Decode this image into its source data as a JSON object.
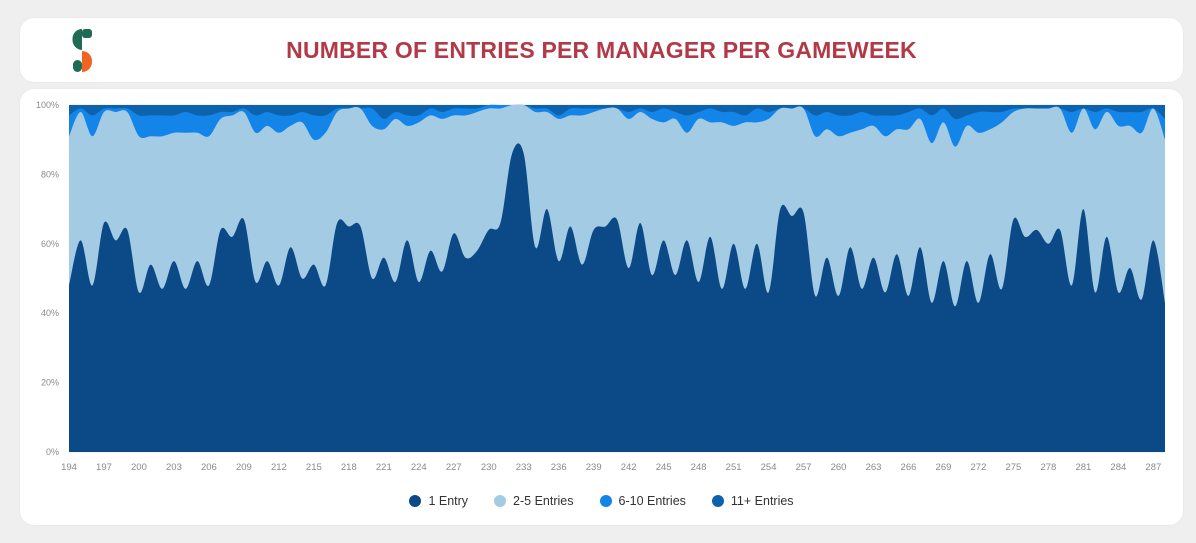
{
  "header": {
    "title": "NUMBER OF ENTRIES PER MANAGER PER GAMEWEEK",
    "logo_icon": "brand-s-logo-icon",
    "title_color": "#b23a48"
  },
  "chart_data": {
    "type": "area",
    "stacked": true,
    "normalized_percent": true,
    "xlabel": "",
    "ylabel": "",
    "ylim": [
      0,
      100
    ],
    "y_ticks": [
      "0%",
      "20%",
      "40%",
      "60%",
      "80%",
      "100%"
    ],
    "x_tick_labels": [
      "194",
      "197",
      "200",
      "203",
      "206",
      "209",
      "212",
      "215",
      "218",
      "221",
      "224",
      "227",
      "230",
      "233",
      "236",
      "239",
      "242",
      "245",
      "248",
      "251",
      "254",
      "257",
      "260",
      "263",
      "266",
      "269",
      "272",
      "275",
      "278",
      "281",
      "284",
      "287"
    ],
    "x_start": 194,
    "x_end": 288,
    "grid": true,
    "legend_position": "bottom",
    "series": [
      {
        "name": "1 Entry",
        "color": "#0c4a87",
        "values": [
          48,
          61,
          48,
          66,
          61,
          64,
          46,
          54,
          47,
          55,
          47,
          55,
          48,
          64,
          62,
          67,
          49,
          55,
          48,
          59,
          50,
          54,
          48,
          66,
          65,
          65,
          50,
          56,
          49,
          61,
          49,
          58,
          52,
          63,
          56,
          58,
          64,
          66,
          86,
          86,
          59,
          70,
          55,
          65,
          54,
          64,
          65,
          67,
          53,
          66,
          51,
          61,
          51,
          61,
          49,
          62,
          47,
          60,
          47,
          60,
          46,
          70,
          68,
          69,
          45,
          56,
          45,
          59,
          47,
          56,
          46,
          57,
          45,
          59,
          43,
          55,
          42,
          55,
          43,
          57,
          47,
          67,
          62,
          64,
          60,
          64,
          48,
          70,
          46,
          62,
          46,
          53,
          44,
          61,
          43
        ]
      },
      {
        "name": "2-5 Entries",
        "color": "#a3cbe4",
        "values": [
          43,
          37,
          43,
          32,
          37,
          34,
          45,
          37,
          44,
          37,
          45,
          37,
          43,
          32,
          35,
          31,
          43,
          39,
          44,
          35,
          45,
          36,
          44,
          32,
          34,
          34,
          44,
          37,
          47,
          33,
          46,
          39,
          44,
          34,
          41,
          40,
          35,
          33,
          14,
          14,
          39,
          28,
          41,
          32,
          43,
          34,
          34,
          32,
          43,
          32,
          45,
          34,
          45,
          31,
          47,
          33,
          48,
          34,
          48,
          35,
          50,
          29,
          31,
          30,
          46,
          37,
          46,
          33,
          46,
          38,
          45,
          36,
          48,
          37,
          46,
          40,
          46,
          39,
          49,
          36,
          48,
          31,
          37,
          35,
          39,
          35,
          44,
          29,
          47,
          36,
          48,
          41,
          48,
          38,
          47
        ]
      },
      {
        "name": "6-10 Entries",
        "color": "#1384e8",
        "values": [
          6,
          1,
          6,
          1,
          1,
          1,
          6,
          6,
          6,
          5,
          6,
          5,
          6,
          2,
          1,
          1,
          5,
          4,
          5,
          3,
          3,
          7,
          5,
          1,
          0,
          0,
          5,
          3,
          2,
          3,
          2,
          2,
          2,
          2,
          2,
          1,
          1,
          1,
          0,
          0,
          1,
          1,
          1,
          2,
          2,
          1,
          0,
          0,
          2,
          1,
          2,
          4,
          2,
          5,
          2,
          4,
          3,
          4,
          2,
          4,
          2,
          0,
          0,
          0,
          6,
          5,
          6,
          5,
          5,
          3,
          6,
          4,
          5,
          3,
          8,
          4,
          8,
          3,
          6,
          5,
          3,
          1,
          0,
          0,
          0,
          0,
          6,
          0,
          5,
          1,
          4,
          4,
          6,
          0,
          6
        ]
      },
      {
        "name": "11+ Entries",
        "color": "#0d62ad",
        "values": [
          3,
          1,
          3,
          1,
          1,
          1,
          3,
          3,
          3,
          3,
          2,
          3,
          3,
          3,
          2,
          1,
          3,
          2,
          3,
          3,
          2,
          3,
          3,
          1,
          1,
          1,
          1,
          4,
          2,
          3,
          3,
          1,
          2,
          1,
          1,
          1,
          0,
          0,
          0,
          0,
          1,
          1,
          3,
          1,
          1,
          1,
          1,
          1,
          2,
          1,
          2,
          1,
          2,
          3,
          2,
          1,
          2,
          2,
          3,
          1,
          2,
          1,
          1,
          1,
          3,
          2,
          3,
          3,
          2,
          3,
          3,
          3,
          2,
          1,
          3,
          1,
          4,
          3,
          2,
          2,
          2,
          1,
          1,
          1,
          1,
          1,
          2,
          1,
          2,
          1,
          2,
          2,
          2,
          1,
          4
        ]
      }
    ]
  }
}
